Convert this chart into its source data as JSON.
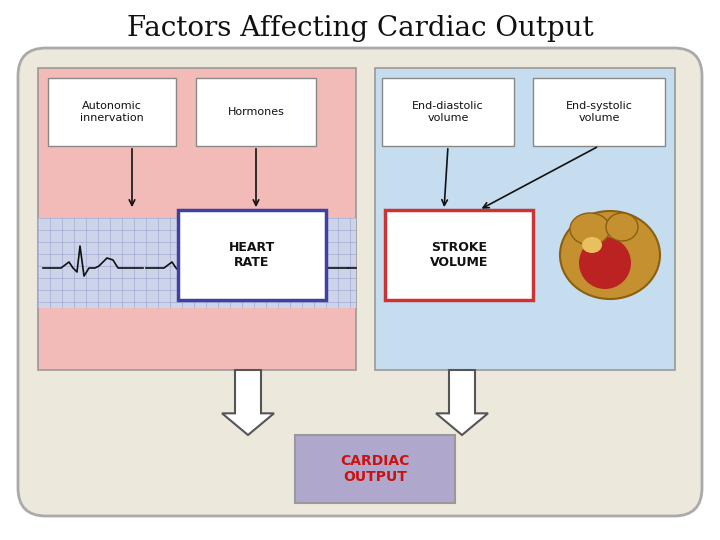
{
  "title": "Factors Affecting Cardiac Output",
  "title_fontsize": 20,
  "title_font": "serif",
  "bg_outer": "#ede8dc",
  "bg_left_panel": "#f2bbb8",
  "bg_right_panel": "#c5ddef",
  "bg_ecg": "#cdd4ea",
  "ecg_grid": "#9aa2cc",
  "heart_rate_box_color": "#4040a0",
  "stroke_volume_box_color": "#cc3333",
  "cardiac_output_box_color": "#b0a8cc",
  "cardiac_output_text_color": "#cc1111",
  "labels": {
    "autonomic": "Autonomic\ninnervation",
    "hormones": "Hormones",
    "heart_rate": "HEART\nRATE",
    "end_diastolic": "End-diastolic\nvolume",
    "end_systolic": "End-systolic\nvolume",
    "stroke_volume": "STROKE\nVOLUME",
    "cardiac_output": "CARDIAC\nOUTPUT"
  },
  "small_fontsize": 8,
  "label_fontsize": 9
}
